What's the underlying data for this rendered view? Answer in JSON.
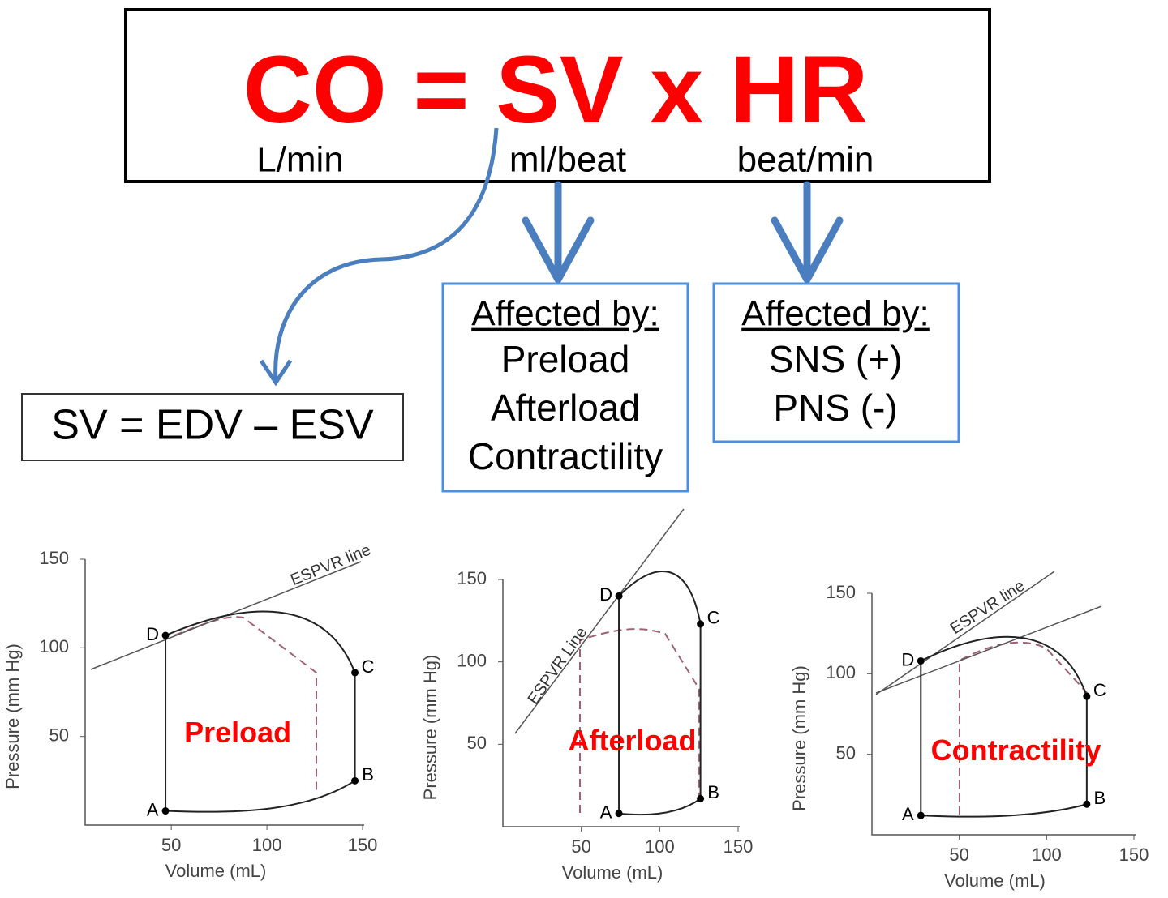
{
  "formula": {
    "text": "CO = SV x HR",
    "units": [
      "L/min",
      "ml/beat",
      "beat/min"
    ]
  },
  "sv_equation": "SV = EDV – ESV",
  "boxes": [
    {
      "heading": "Affected by:",
      "items": [
        "Preload",
        "Afterload",
        "Contractility"
      ]
    },
    {
      "heading": "Affected by:",
      "items": [
        "SNS (+)",
        "PNS (-)"
      ]
    }
  ],
  "pv_loops": [
    {
      "label": "Preload",
      "x_label": "Volume (mL)",
      "y_label": "Pressure (mm Hg)",
      "espvr_label": "ESPVR line",
      "xlim": [
        5,
        150
      ],
      "ylim": [
        0,
        150
      ],
      "xticks": [
        50,
        100,
        150
      ],
      "yticks": [
        50,
        100,
        150
      ],
      "points": [
        {
          "label": "A",
          "volume": 47,
          "pressure": 8
        },
        {
          "label": "B",
          "volume": 146,
          "pressure": 25
        },
        {
          "label": "C",
          "volume": 146,
          "pressure": 86
        },
        {
          "label": "D",
          "volume": 47,
          "pressure": 107
        }
      ]
    },
    {
      "label": "Afterload",
      "x_label": "Volume (mL)",
      "y_label": "Pressure (mm Hg)",
      "espvr_label": "ESPVR Line",
      "xlim": [
        0,
        150
      ],
      "ylim": [
        0,
        150
      ],
      "xticks": [
        50,
        100,
        150
      ],
      "yticks": [
        50,
        100,
        150
      ],
      "points": [
        {
          "label": "A",
          "volume": 74,
          "pressure": 8
        },
        {
          "label": "B",
          "volume": 126,
          "pressure": 17
        },
        {
          "label": "C",
          "volume": 126,
          "pressure": 123
        },
        {
          "label": "D",
          "volume": 74,
          "pressure": 140
        }
      ]
    },
    {
      "label": "Contractility",
      "x_label": "Volume (mL)",
      "y_label": "Pressure (mm Hg)",
      "espvr_label": "ESPVR line",
      "xlim": [
        0,
        150
      ],
      "ylim": [
        0,
        150
      ],
      "xticks": [
        50,
        100,
        150
      ],
      "yticks": [
        50,
        100,
        150
      ],
      "points": [
        {
          "label": "A",
          "volume": 28,
          "pressure": 12
        },
        {
          "label": "B",
          "volume": 123,
          "pressure": 19
        },
        {
          "label": "C",
          "volume": 123,
          "pressure": 86
        },
        {
          "label": "D",
          "volume": 28,
          "pressure": 108
        }
      ]
    }
  ]
}
